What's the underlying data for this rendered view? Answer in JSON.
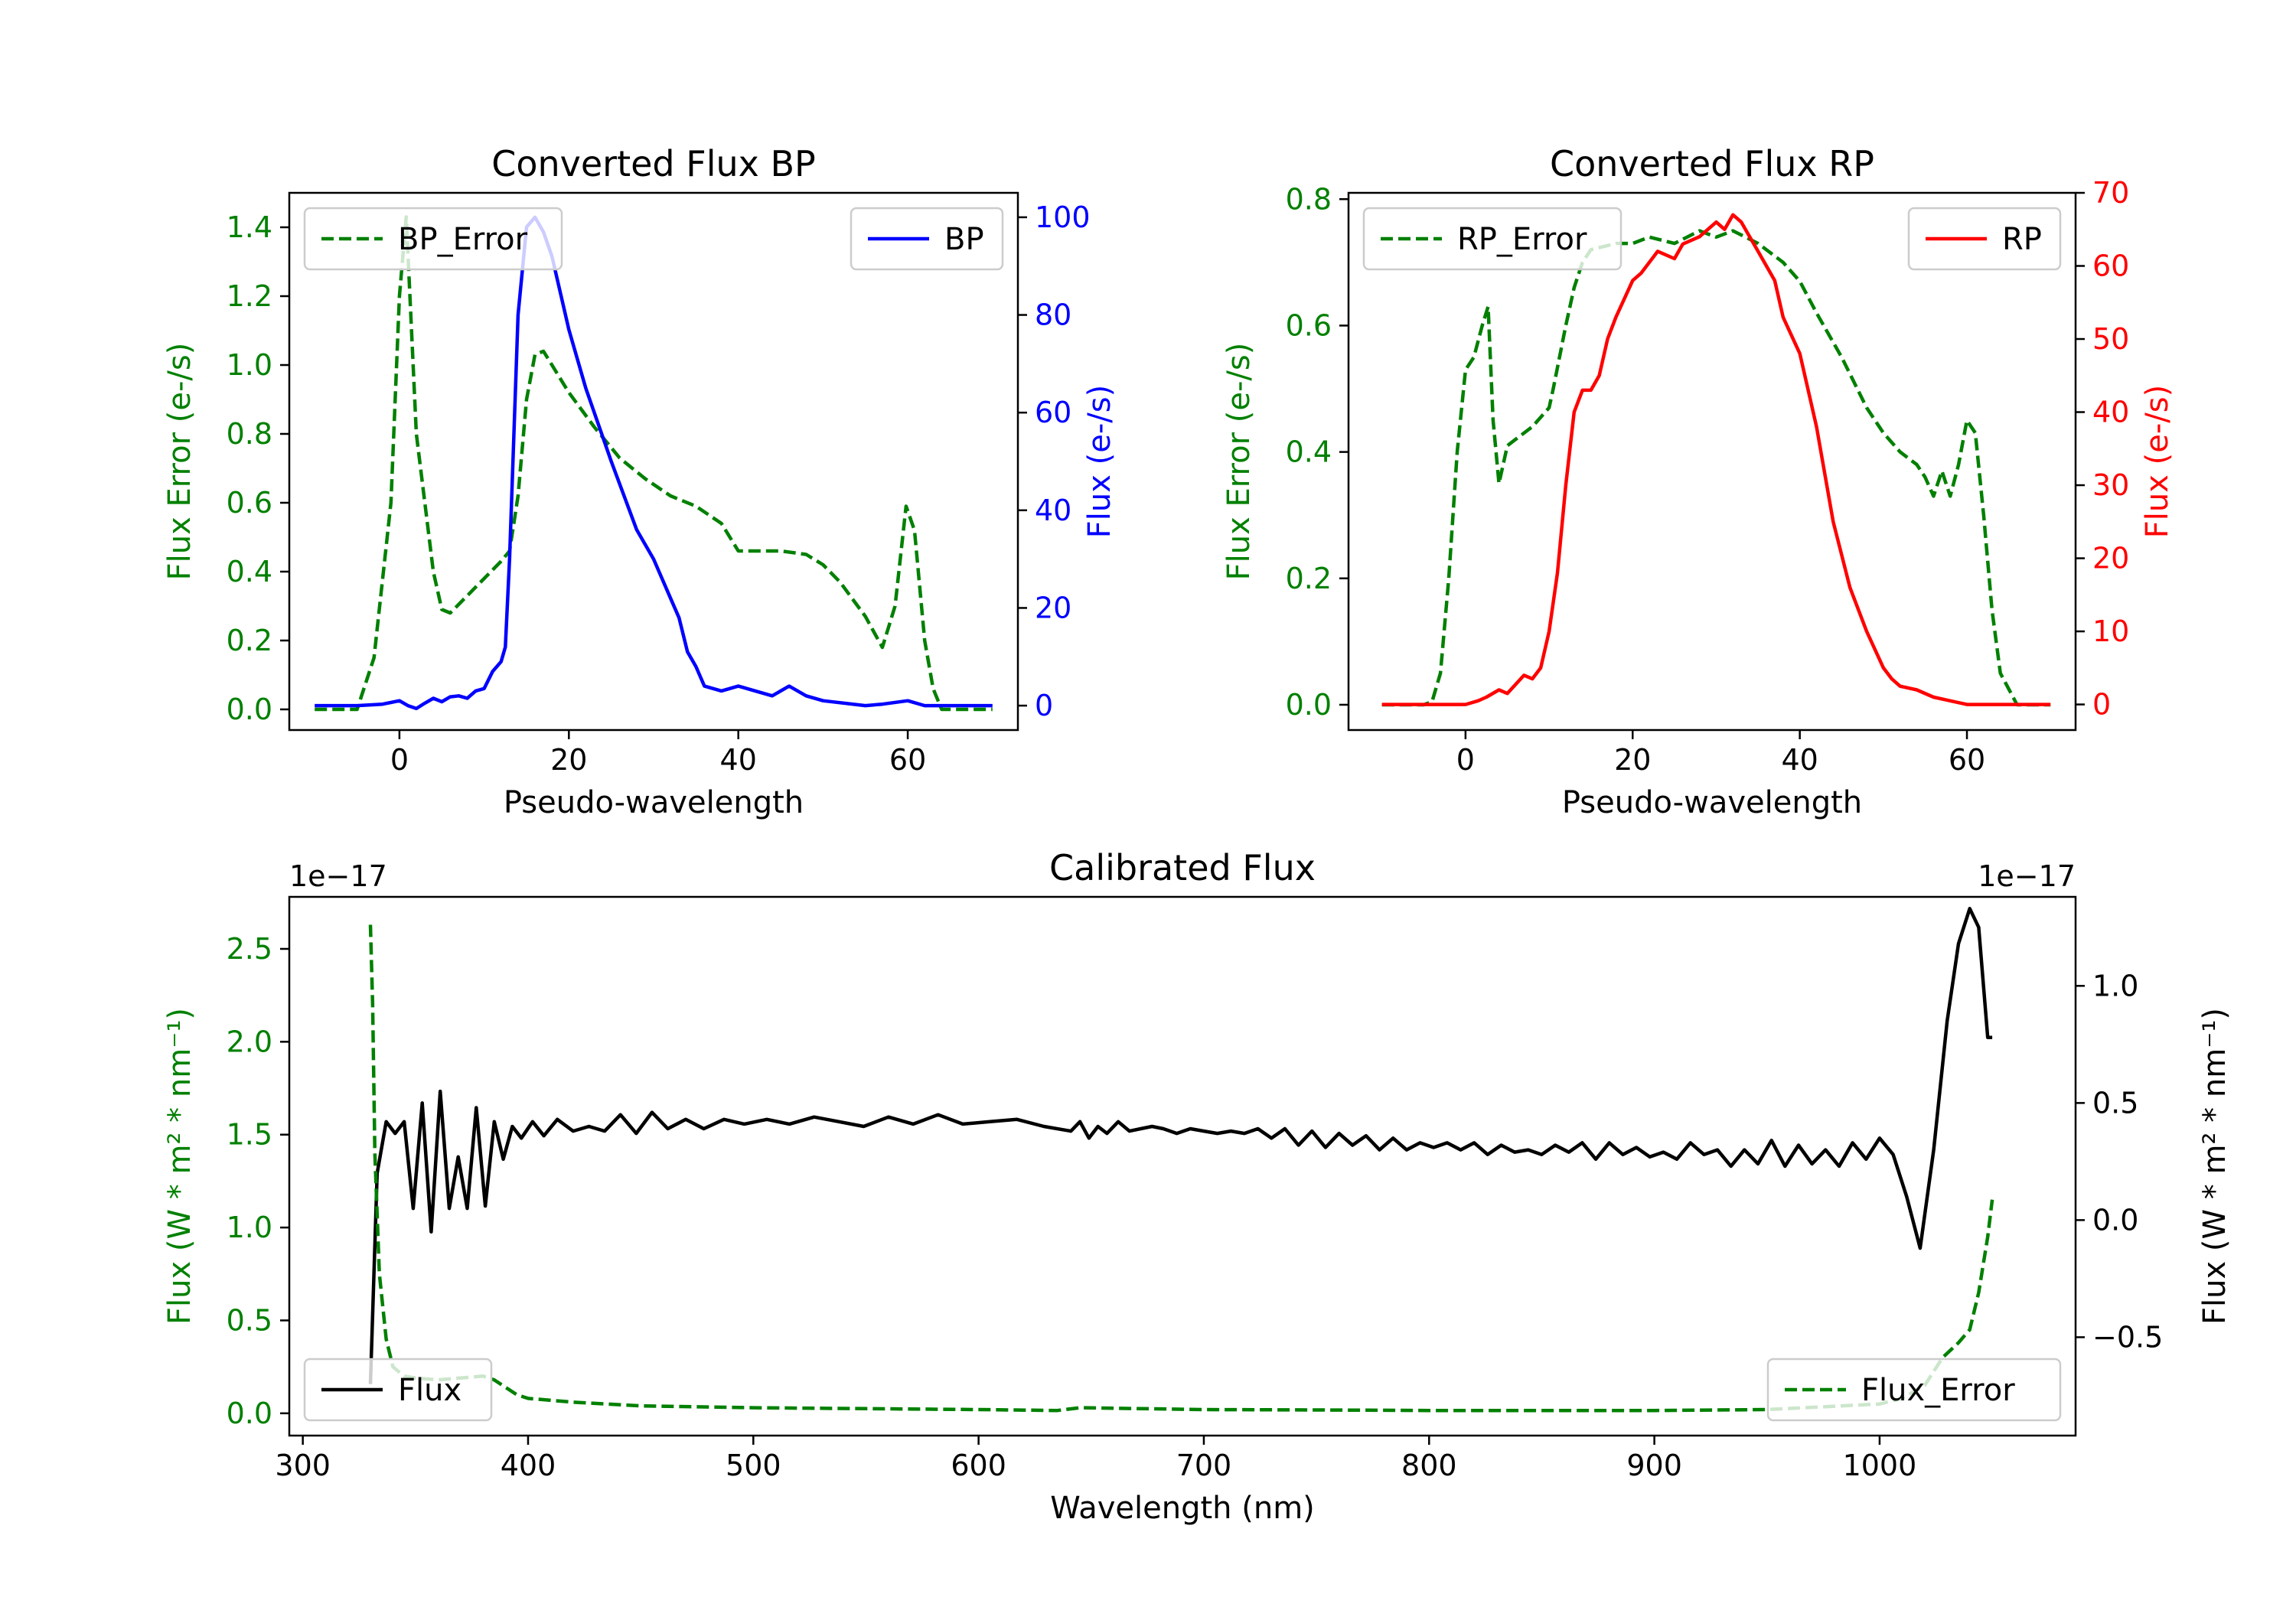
{
  "chart_data": [
    {
      "id": "bp",
      "type": "line",
      "title": "Converted Flux BP",
      "xlabel": "Pseudo-wavelength",
      "xlim": [
        -13,
        73
      ],
      "xticks": [
        0,
        20,
        40,
        60
      ],
      "left_axis": {
        "label": "Flux Error (e-/s)",
        "color": "#008000",
        "ylim": [
          -0.06,
          1.5
        ],
        "ticks": [
          0.0,
          0.2,
          0.4,
          0.6,
          0.8,
          1.0,
          1.2,
          1.4
        ],
        "tick_labels": [
          "0.0",
          "0.2",
          "0.4",
          "0.6",
          "0.8",
          "1.0",
          "1.2",
          "1.4"
        ]
      },
      "right_axis": {
        "label": "Flux (e-/s)",
        "color": "#0000ff",
        "ylim": [
          -5,
          105
        ],
        "ticks": [
          0,
          20,
          40,
          60,
          80,
          100
        ],
        "tick_labels": [
          "0",
          "20",
          "40",
          "60",
          "80",
          "100"
        ]
      },
      "series": [
        {
          "name": "BP_Error",
          "axis": "left",
          "color": "#008000",
          "dash": true,
          "legend_pos": "upper-left",
          "x": [
            -10,
            -5,
            -3,
            -1,
            0,
            0.8,
            2,
            3,
            4,
            5,
            6,
            8,
            10,
            12,
            13,
            14,
            15,
            16,
            17,
            18,
            20,
            23,
            26,
            29,
            32,
            35,
            38,
            40,
            42,
            45,
            48,
            50,
            52,
            55,
            57,
            58.5,
            59.8,
            60.8,
            62,
            63,
            64,
            66,
            70
          ],
          "values": [
            0.0,
            0.0,
            0.15,
            0.6,
            1.2,
            1.43,
            0.8,
            0.6,
            0.4,
            0.29,
            0.28,
            0.33,
            0.38,
            0.43,
            0.46,
            0.62,
            0.9,
            1.03,
            1.04,
            1.0,
            0.92,
            0.82,
            0.73,
            0.67,
            0.62,
            0.59,
            0.54,
            0.46,
            0.46,
            0.46,
            0.45,
            0.42,
            0.37,
            0.27,
            0.18,
            0.3,
            0.59,
            0.52,
            0.2,
            0.06,
            0.0,
            0.0,
            0.0
          ]
        },
        {
          "name": "BP",
          "axis": "right",
          "color": "#0000ff",
          "dash": false,
          "legend_pos": "upper-right",
          "x": [
            -10,
            -5,
            -2,
            0,
            1,
            2,
            3,
            4,
            5,
            6,
            7,
            8,
            9,
            10,
            11,
            12,
            12.5,
            13,
            14,
            15,
            16,
            17,
            18,
            20,
            22,
            25,
            28,
            30,
            32,
            33,
            34,
            35,
            36,
            38,
            40,
            42,
            44,
            46,
            48,
            50,
            55,
            57,
            60,
            62,
            65,
            70
          ],
          "values": [
            0,
            0,
            0.3,
            1,
            0,
            -0.6,
            0.5,
            1.5,
            0.8,
            1.8,
            2,
            1.5,
            3,
            3.5,
            7,
            9,
            12,
            30,
            80,
            98,
            100,
            97,
            92,
            77,
            65,
            50,
            36,
            30,
            22,
            18,
            11,
            8,
            4,
            3,
            4,
            3,
            2,
            4,
            2,
            1,
            0,
            0.3,
            1,
            0,
            0,
            0
          ]
        }
      ]
    },
    {
      "id": "rp",
      "type": "line",
      "title": "Converted Flux RP",
      "xlabel": "Pseudo-wavelength",
      "xlim": [
        -14,
        73
      ],
      "xticks": [
        0,
        20,
        40,
        60
      ],
      "left_axis": {
        "label": "Flux Error (e-/s)",
        "color": "#008000",
        "ylim": [
          -0.04,
          0.81
        ],
        "ticks": [
          0.0,
          0.2,
          0.4,
          0.6,
          0.8
        ],
        "tick_labels": [
          "0.0",
          "0.2",
          "0.4",
          "0.6",
          "0.8"
        ]
      },
      "right_axis": {
        "label": "Flux (e-/s)",
        "color": "#ff0000",
        "ylim": [
          -3.5,
          70
        ],
        "ticks": [
          0,
          10,
          20,
          30,
          40,
          50,
          60,
          70
        ],
        "tick_labels": [
          "0",
          "10",
          "20",
          "30",
          "40",
          "50",
          "60",
          "70"
        ]
      },
      "series": [
        {
          "name": "RP_Error",
          "axis": "left",
          "color": "#008000",
          "dash": true,
          "legend_pos": "upper-left",
          "x": [
            -10,
            -5,
            -4,
            -3,
            -2,
            -1,
            0,
            1,
            2,
            2.7,
            3.3,
            4,
            5,
            6,
            8,
            10,
            10.5,
            12,
            13,
            14,
            15,
            18,
            20,
            22,
            25,
            28,
            30,
            32,
            35,
            38,
            40,
            42,
            45,
            48,
            50,
            52,
            54,
            55,
            56,
            57,
            58,
            59,
            60,
            61,
            62,
            63,
            64,
            66,
            70
          ],
          "values": [
            0.0,
            0.0,
            0.005,
            0.05,
            0.2,
            0.4,
            0.53,
            0.55,
            0.6,
            0.63,
            0.45,
            0.35,
            0.41,
            0.42,
            0.44,
            0.47,
            0.5,
            0.6,
            0.66,
            0.7,
            0.72,
            0.73,
            0.73,
            0.74,
            0.73,
            0.75,
            0.74,
            0.75,
            0.73,
            0.7,
            0.67,
            0.62,
            0.55,
            0.47,
            0.43,
            0.4,
            0.38,
            0.36,
            0.33,
            0.37,
            0.33,
            0.38,
            0.45,
            0.43,
            0.3,
            0.15,
            0.05,
            0.0,
            0.0
          ]
        },
        {
          "name": "RP",
          "axis": "right",
          "color": "#ff0000",
          "dash": false,
          "legend_pos": "upper-right",
          "x": [
            -10,
            -3,
            0,
            1.5,
            2.5,
            4,
            5,
            7,
            8,
            9,
            10,
            11,
            12,
            13,
            14,
            15,
            16,
            17,
            18,
            20,
            21,
            23,
            25,
            26,
            28,
            30,
            31,
            32,
            33,
            34,
            35,
            36,
            37,
            38,
            40,
            42,
            44,
            46,
            48,
            50,
            51,
            52,
            54,
            56,
            58,
            60,
            65,
            70
          ],
          "values": [
            0,
            0,
            0,
            0.5,
            1,
            2,
            1.5,
            4,
            3.5,
            5,
            10,
            18,
            30,
            40,
            43,
            43,
            45,
            50,
            53,
            58,
            59,
            62,
            61,
            63,
            64,
            66,
            65,
            67,
            66,
            64,
            62,
            60,
            58,
            53,
            48,
            38,
            25,
            16,
            10,
            5,
            3.5,
            2.5,
            2,
            1,
            0.5,
            0,
            0,
            0
          ]
        }
      ]
    },
    {
      "id": "cal",
      "type": "line",
      "title": "Calibrated Flux",
      "xlabel": "Wavelength (nm)",
      "xlim": [
        294,
        1087
      ],
      "xticks": [
        300,
        400,
        500,
        600,
        700,
        800,
        900,
        1000
      ],
      "left_axis": {
        "label": "Flux (W * m² * nm⁻¹)",
        "color": "#008000",
        "ylim": [
          -0.12,
          2.78
        ],
        "ticks": [
          0.0,
          0.5,
          1.0,
          1.5,
          2.0,
          2.5
        ],
        "tick_labels": [
          "0.0",
          "0.5",
          "1.0",
          "1.5",
          "2.0",
          "2.5"
        ],
        "exponent": "1e−17"
      },
      "right_axis": {
        "label": "Flux (W * m² * nm⁻¹)",
        "color": "#000000",
        "ylim": [
          -0.92,
          1.38
        ],
        "ticks": [
          -0.5,
          0.0,
          0.5,
          1.0
        ],
        "tick_labels": [
          "−0.5",
          "0.0",
          "0.5",
          "1.0"
        ],
        "exponent": "1e−17"
      },
      "series": [
        {
          "name": "Flux",
          "axis": "right",
          "color": "#000000",
          "dash": false,
          "legend_pos": "lower-left",
          "x": [
            330,
            333,
            337,
            341,
            345,
            349,
            353,
            357,
            361,
            365,
            369,
            373,
            377,
            381,
            385,
            389,
            393,
            397,
            402,
            407,
            413,
            420,
            427,
            434,
            441,
            448,
            455,
            462,
            470,
            478,
            487,
            496,
            506,
            516,
            527,
            538,
            549,
            560,
            571,
            582,
            593,
            605,
            617,
            629,
            641,
            645,
            649,
            653,
            657,
            662,
            667,
            672,
            677,
            682,
            688,
            694,
            700,
            706,
            712,
            718,
            724,
            730,
            736,
            742,
            748,
            754,
            760,
            766,
            772,
            778,
            784,
            790,
            796,
            802,
            808,
            814,
            820,
            826,
            832,
            838,
            844,
            850,
            856,
            862,
            868,
            874,
            880,
            886,
            892,
            898,
            904,
            910,
            916,
            922,
            928,
            934,
            940,
            946,
            952,
            958,
            964,
            970,
            976,
            982,
            988,
            994,
            1000,
            1006,
            1012,
            1018,
            1024,
            1030,
            1035,
            1040,
            1044,
            1048,
            1050
          ],
          "values": [
            -0.7,
            0.2,
            0.42,
            0.37,
            0.42,
            0.05,
            0.5,
            -0.05,
            0.55,
            0.05,
            0.27,
            0.05,
            0.48,
            0.06,
            0.42,
            0.26,
            0.4,
            0.35,
            0.42,
            0.36,
            0.43,
            0.38,
            0.4,
            0.38,
            0.45,
            0.37,
            0.46,
            0.39,
            0.43,
            0.39,
            0.43,
            0.41,
            0.43,
            0.41,
            0.44,
            0.42,
            0.4,
            0.44,
            0.41,
            0.45,
            0.41,
            0.42,
            0.43,
            0.4,
            0.38,
            0.42,
            0.35,
            0.4,
            0.37,
            0.42,
            0.38,
            0.39,
            0.4,
            0.39,
            0.37,
            0.39,
            0.38,
            0.37,
            0.38,
            0.37,
            0.39,
            0.35,
            0.39,
            0.32,
            0.38,
            0.31,
            0.37,
            0.32,
            0.36,
            0.3,
            0.35,
            0.3,
            0.33,
            0.31,
            0.33,
            0.3,
            0.33,
            0.28,
            0.32,
            0.29,
            0.3,
            0.28,
            0.32,
            0.29,
            0.33,
            0.26,
            0.33,
            0.28,
            0.31,
            0.27,
            0.29,
            0.26,
            0.33,
            0.28,
            0.3,
            0.23,
            0.3,
            0.24,
            0.34,
            0.23,
            0.32,
            0.24,
            0.3,
            0.23,
            0.33,
            0.26,
            0.35,
            0.28,
            0.1,
            -0.12,
            0.3,
            0.85,
            1.18,
            1.33,
            1.25,
            0.78,
            0.78
          ]
        },
        {
          "name": "Flux_Error",
          "axis": "left",
          "color": "#008000",
          "dash": true,
          "legend_pos": "lower-right",
          "x": [
            330,
            331,
            332,
            334,
            337,
            340,
            345,
            350,
            360,
            370,
            380,
            385,
            390,
            395,
            400,
            420,
            450,
            500,
            550,
            600,
            635,
            645,
            700,
            750,
            800,
            850,
            900,
            950,
            1000,
            1010,
            1020,
            1028,
            1035,
            1040,
            1044,
            1048,
            1050
          ],
          "values": [
            2.63,
            2.2,
            1.4,
            0.75,
            0.4,
            0.25,
            0.2,
            0.19,
            0.18,
            0.19,
            0.2,
            0.18,
            0.14,
            0.1,
            0.08,
            0.06,
            0.04,
            0.03,
            0.025,
            0.02,
            0.015,
            0.03,
            0.02,
            0.018,
            0.015,
            0.015,
            0.015,
            0.02,
            0.05,
            0.08,
            0.15,
            0.3,
            0.38,
            0.45,
            0.65,
            0.95,
            1.15
          ]
        }
      ]
    }
  ]
}
